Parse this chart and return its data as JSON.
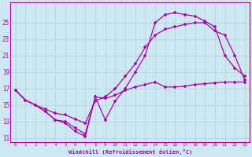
{
  "xlabel": "Windchill (Refroidissement éolien,°C)",
  "bg_color": "#cde8f0",
  "line_color": "#aa00aa",
  "grid_color": "#b0d0d8",
  "line1_x": [
    0,
    1,
    2,
    3,
    4,
    5,
    6,
    7,
    8,
    9,
    10,
    11,
    12,
    13,
    14,
    15,
    16,
    17,
    18,
    19,
    20,
    21,
    22,
    23
  ],
  "line1_y": [
    16.8,
    15.6,
    15.0,
    14.2,
    13.2,
    13.0,
    12.2,
    11.5,
    16.0,
    13.2,
    15.5,
    17.0,
    19.0,
    21.0,
    25.0,
    26.0,
    26.2,
    26.0,
    25.8,
    25.2,
    24.5,
    21.0,
    19.5,
    18.5
  ],
  "line2_x": [
    0,
    1,
    2,
    3,
    4,
    5,
    6,
    7,
    8,
    9,
    10,
    11,
    12,
    13,
    14,
    15,
    16,
    17,
    18,
    19,
    20,
    21,
    22,
    23
  ],
  "line2_y": [
    16.8,
    15.6,
    15.0,
    14.5,
    14.0,
    13.8,
    13.3,
    12.8,
    15.5,
    16.0,
    17.0,
    18.5,
    20.0,
    22.0,
    23.5,
    24.2,
    24.5,
    24.8,
    25.0,
    25.0,
    24.0,
    23.5,
    21.0,
    18.0
  ],
  "line3_x": [
    0,
    1,
    2,
    3,
    4,
    5,
    6,
    7,
    8,
    9,
    10,
    11,
    12,
    13,
    14,
    15,
    16,
    17,
    18,
    19,
    20,
    21,
    22,
    23
  ],
  "line3_y": [
    16.8,
    15.6,
    15.0,
    14.2,
    13.2,
    12.8,
    11.8,
    11.2,
    16.0,
    15.8,
    16.2,
    16.8,
    17.2,
    17.5,
    17.8,
    17.2,
    17.2,
    17.3,
    17.5,
    17.6,
    17.7,
    17.8,
    17.8,
    17.8
  ],
  "ylim": [
    10.5,
    27.5
  ],
  "xlim": [
    -0.5,
    23.5
  ],
  "yticks": [
    11,
    13,
    15,
    17,
    19,
    21,
    23,
    25
  ],
  "xticks": [
    0,
    1,
    2,
    3,
    4,
    5,
    6,
    7,
    8,
    9,
    10,
    11,
    12,
    13,
    14,
    15,
    16,
    17,
    18,
    19,
    20,
    21,
    22,
    23
  ],
  "marker": "+"
}
